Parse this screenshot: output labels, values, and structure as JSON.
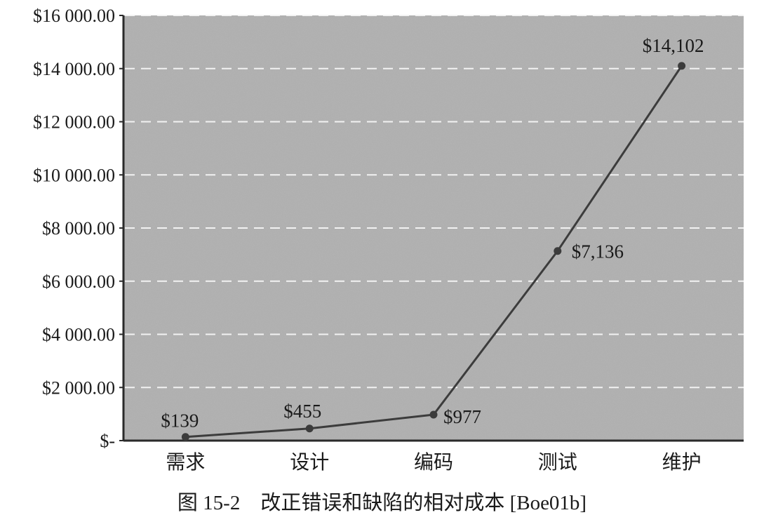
{
  "chart_data": {
    "type": "line",
    "categories": [
      "需求",
      "设计",
      "编码",
      "测试",
      "维护"
    ],
    "values": [
      139,
      455,
      977,
      7136,
      14102
    ],
    "data_labels": [
      "$139",
      "$455",
      "$977",
      "$7,136",
      "$14,102"
    ],
    "ylim": [
      0,
      16000
    ],
    "y_ticks": [
      0,
      2000,
      4000,
      6000,
      8000,
      10000,
      12000,
      14000,
      16000
    ],
    "y_tick_labels": [
      "$-",
      "$2 000.00",
      "$4 000.00",
      "$6 000.00",
      "$8 000.00",
      "$10 000.00",
      "$12 000.00",
      "$14 000.00",
      "$16 000.00"
    ],
    "grid": "horizontal dashed",
    "legend": "none"
  },
  "caption": "图 15-2　改正错误和缺陷的相对成本 [Boe01b]",
  "colors": {
    "plot_background": "#b4b4b4",
    "line": "#3c3c3c",
    "marker": "#3c3c3c",
    "grid": "#f2f2f2",
    "axis": "#2a2a2a"
  }
}
